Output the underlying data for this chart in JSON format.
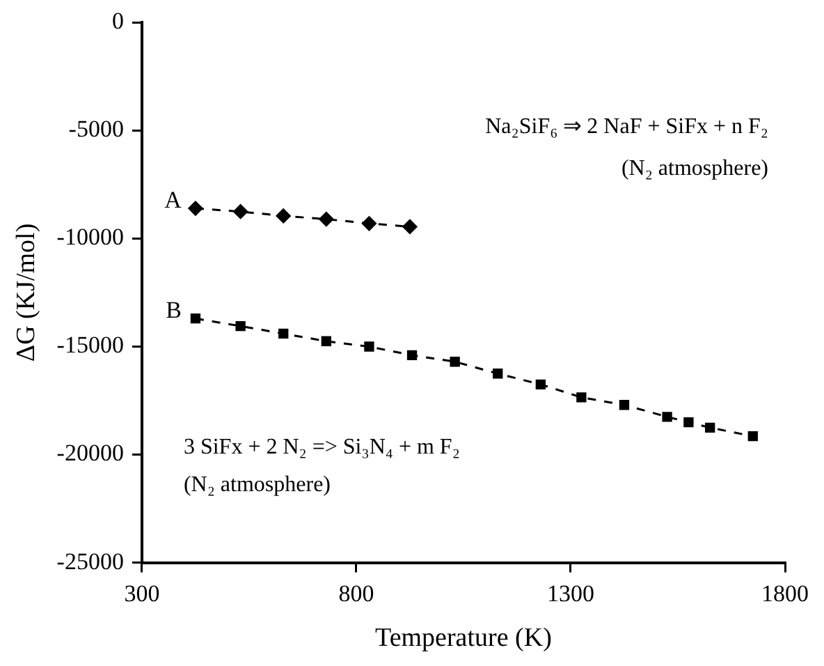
{
  "chart_data": {
    "type": "line",
    "xlabel": "Temperature (K)",
    "ylabel": "ΔG (KJ/mol)",
    "xlim": [
      300,
      1800
    ],
    "xticks": [
      300,
      800,
      1300,
      1800
    ],
    "ylim": [
      -25000,
      0
    ],
    "yticks": [
      -25000,
      -20000,
      -15000,
      -10000,
      -5000,
      0
    ],
    "grid": false,
    "legend": false,
    "line_style": "dashed",
    "series": [
      {
        "name": "A",
        "color": "#000000",
        "marker": "diamond",
        "x": [
          425,
          530,
          630,
          730,
          830,
          925
        ],
        "values": [
          -8600,
          -8750,
          -8950,
          -9100,
          -9300,
          -9450
        ]
      },
      {
        "name": "B",
        "color": "#000000",
        "marker": "square",
        "x": [
          425,
          530,
          630,
          730,
          830,
          930,
          1030,
          1130,
          1230,
          1325,
          1425,
          1525,
          1575,
          1625,
          1725
        ],
        "values": [
          -13700,
          -14050,
          -14400,
          -14750,
          -15000,
          -15400,
          -15700,
          -16250,
          -16750,
          -17350,
          -17700,
          -18250,
          -18500,
          -18750,
          -19150
        ]
      }
    ],
    "annotations": [
      "Na₂SiF₆ ⇒ 2 NaF + SiFx + n F₂",
      "(N₂ atmosphere)",
      "3 SiFx + 2 N₂ => Si₃N₄ + m F₂",
      "(N₂ atmosphere)"
    ]
  }
}
